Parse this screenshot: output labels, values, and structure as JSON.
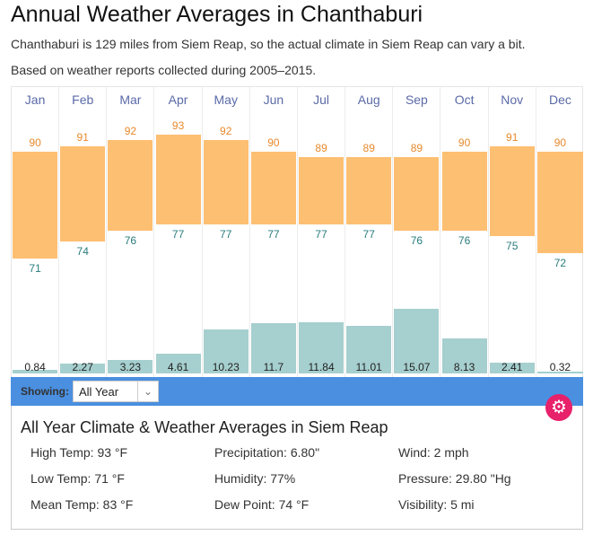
{
  "title": "Annual Weather Averages in Chanthaburi",
  "subtitle": "Chanthaburi is 129 miles from Siem Reap, so the actual climate in Siem Reap can vary a bit.",
  "source_note": "Based on weather reports collected during 2005–2015.",
  "chart_data": {
    "type": "bar",
    "categories": [
      "Jan",
      "Feb",
      "Mar",
      "Apr",
      "May",
      "Jun",
      "Jul",
      "Aug",
      "Sep",
      "Oct",
      "Nov",
      "Dec"
    ],
    "series": [
      {
        "name": "High Temp (°F)",
        "values": [
          90,
          91,
          92,
          93,
          92,
          90,
          89,
          89,
          89,
          90,
          91,
          90
        ]
      },
      {
        "name": "Low Temp (°F)",
        "values": [
          71,
          74,
          76,
          77,
          77,
          77,
          77,
          77,
          76,
          76,
          75,
          72
        ]
      },
      {
        "name": "Precipitation (in)",
        "values": [
          "0.84",
          "2.27",
          "3.23",
          "4.61",
          "10.23",
          "11.7",
          "11.84",
          "11.01",
          "15.07",
          "8.13",
          "2.41",
          "0.32"
        ]
      }
    ],
    "colors": {
      "temp": "#fdbf72",
      "precip": "#a6cfcf",
      "high_label": "#e8892c",
      "low_label": "#2a7b7b"
    }
  },
  "controls": {
    "showing_label": "Showing:",
    "period": "All Year"
  },
  "summary": {
    "title": "All Year Climate & Weather Averages in Siem Reap",
    "stats": [
      "High Temp: 93 °F",
      "Precipitation: 6.80\"",
      "Wind: 2 mph",
      "Low Temp: 71 °F",
      "Humidity: 77%",
      "Pressure: 29.80 \"Hg",
      "Mean Temp: 83 °F",
      "Dew Point: 74 °F",
      "Visibility: 5 mi"
    ]
  }
}
